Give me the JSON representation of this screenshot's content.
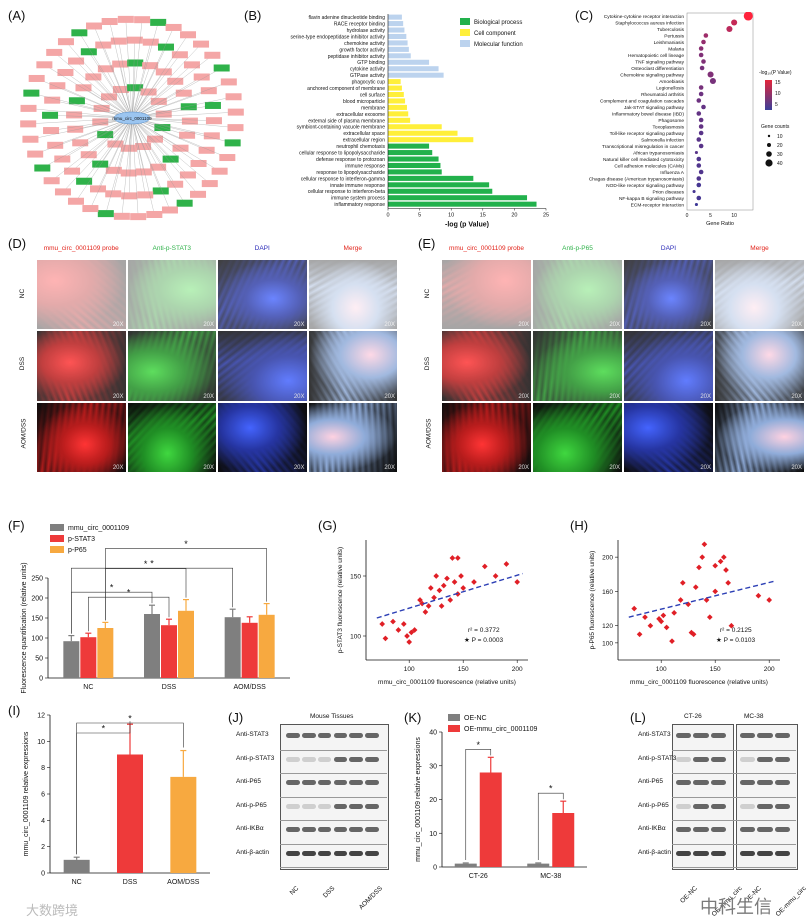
{
  "panel_labels": [
    "(A)",
    "(B)",
    "(C)",
    "(D)",
    "(E)",
    "(F)",
    "(G)",
    "(H)",
    "(I)",
    "(J)",
    "(K)",
    "(L)"
  ],
  "network": {
    "center_label": "mmu_circ_0001109",
    "accent_pink": "#f4a6a6",
    "accent_green": "#2fb24a"
  },
  "go_chart": {
    "xlabel": "-log (p Value)",
    "legend": [
      "Biological process",
      "Cell component",
      "Molecular function"
    ],
    "colors": {
      "bp": "#22b14c",
      "cc": "#ffef3a",
      "mf": "#bcd3ee"
    },
    "terms": [
      {
        "name": "flavin adenine dinucleotide binding",
        "value": 2.2,
        "cat": "mf"
      },
      {
        "name": "RACE receptor binding",
        "value": 2.4,
        "cat": "mf"
      },
      {
        "name": "hydrolase activity",
        "value": 2.6,
        "cat": "mf"
      },
      {
        "name": "serine-type endopeptidase inhibitor activity",
        "value": 2.9,
        "cat": "mf"
      },
      {
        "name": "chemokine activity",
        "value": 3.1,
        "cat": "mf"
      },
      {
        "name": "growth factor activity",
        "value": 3.3,
        "cat": "mf"
      },
      {
        "name": "peptidase inhibitor activity",
        "value": 3.6,
        "cat": "mf"
      },
      {
        "name": "GTP binding",
        "value": 6.5,
        "cat": "mf"
      },
      {
        "name": "cytokine activity",
        "value": 8.0,
        "cat": "mf"
      },
      {
        "name": "GTPase activity",
        "value": 8.8,
        "cat": "mf"
      },
      {
        "name": "phagocytic cup",
        "value": 2.0,
        "cat": "cc"
      },
      {
        "name": "anchored component of membrane",
        "value": 2.2,
        "cat": "cc"
      },
      {
        "name": "cell surface",
        "value": 2.5,
        "cat": "cc"
      },
      {
        "name": "blood microparticle",
        "value": 2.7,
        "cat": "cc"
      },
      {
        "name": "membrane",
        "value": 3.0,
        "cat": "cc"
      },
      {
        "name": "extracellular exosome",
        "value": 3.2,
        "cat": "cc"
      },
      {
        "name": "external side of plasma membrane",
        "value": 3.5,
        "cat": "cc"
      },
      {
        "name": "symbiont-containing vacuole membrane",
        "value": 8.5,
        "cat": "cc"
      },
      {
        "name": "extracellular space",
        "value": 11.0,
        "cat": "cc"
      },
      {
        "name": "extracellular region",
        "value": 13.5,
        "cat": "cc"
      },
      {
        "name": "neutrophil chemotaxis",
        "value": 6.5,
        "cat": "bp"
      },
      {
        "name": "cellular response to lipopolysaccharide",
        "value": 7.0,
        "cat": "bp"
      },
      {
        "name": "defense response to protozoan",
        "value": 8.0,
        "cat": "bp"
      },
      {
        "name": "immune response",
        "value": 8.3,
        "cat": "bp"
      },
      {
        "name": "response to lipopolysaccharide",
        "value": 8.5,
        "cat": "bp"
      },
      {
        "name": "cellular response to interferon-gamma",
        "value": 13.5,
        "cat": "bp"
      },
      {
        "name": "innate immune response",
        "value": 16.0,
        "cat": "bp"
      },
      {
        "name": "cellular response to interferon-beta",
        "value": 16.5,
        "cat": "bp"
      },
      {
        "name": "immune system process",
        "value": 22.0,
        "cat": "bp"
      },
      {
        "name": "inflammatory response",
        "value": 23.5,
        "cat": "bp"
      }
    ],
    "ticks": [
      "0",
      "5",
      "10",
      "15",
      "20",
      "25"
    ]
  },
  "kegg": {
    "xlabel": "Gene Ratio",
    "legend_title": "-log₁₀(P Value)",
    "legend_scale": [
      "15",
      "10",
      "5"
    ],
    "counts_title": "Gene counts",
    "counts": [
      "10",
      "20",
      "30",
      "40"
    ],
    "ticks": [
      "0",
      "5",
      "10"
    ],
    "pathways": [
      {
        "name": "Cytokine-cytokine receptor interaction",
        "ratio": 13,
        "size": 5,
        "t": 1.0
      },
      {
        "name": "Staphylococcus aureus infection",
        "ratio": 10,
        "size": 3,
        "t": 0.7
      },
      {
        "name": "Tuberculosis",
        "ratio": 9,
        "size": 3,
        "t": 0.65
      },
      {
        "name": "Pertussis",
        "ratio": 4,
        "size": 2,
        "t": 0.5
      },
      {
        "name": "Leishmaniasis",
        "ratio": 3.5,
        "size": 2,
        "t": 0.45
      },
      {
        "name": "Malaria",
        "ratio": 3,
        "size": 2,
        "t": 0.4
      },
      {
        "name": "Hematopoietic cell lineage",
        "ratio": 3,
        "size": 2,
        "t": 0.35
      },
      {
        "name": "TNF signaling pathway",
        "ratio": 3.5,
        "size": 2,
        "t": 0.35
      },
      {
        "name": "Osteoclast differentiation",
        "ratio": 3.2,
        "size": 2,
        "t": 0.3
      },
      {
        "name": "Chemokine signaling pathway",
        "ratio": 5,
        "size": 3,
        "t": 0.35
      },
      {
        "name": "Amoebiasis",
        "ratio": 5.5,
        "size": 3,
        "t": 0.3
      },
      {
        "name": "Legionellosis",
        "ratio": 3,
        "size": 2,
        "t": 0.3
      },
      {
        "name": "Rheumatoid arthritis",
        "ratio": 3,
        "size": 2,
        "t": 0.25
      },
      {
        "name": "Complement and coagulation cascades",
        "ratio": 2.5,
        "size": 2,
        "t": 0.25
      },
      {
        "name": "Jak-STAT signaling pathway",
        "ratio": 3.5,
        "size": 2,
        "t": 0.2
      },
      {
        "name": "Inflammatory bowel disease (IBD)",
        "ratio": 2.5,
        "size": 2,
        "t": 0.2
      },
      {
        "name": "Phagosome",
        "ratio": 3,
        "size": 2,
        "t": 0.2
      },
      {
        "name": "Toxoplasmosis",
        "ratio": 3,
        "size": 2,
        "t": 0.2
      },
      {
        "name": "Toll-like receptor signaling pathway",
        "ratio": 3,
        "size": 2,
        "t": 0.15
      },
      {
        "name": "Salmonella infection",
        "ratio": 2.5,
        "size": 2,
        "t": 0.15
      },
      {
        "name": "Transcriptional misregulation in cancer",
        "ratio": 3,
        "size": 2,
        "t": 0.15
      },
      {
        "name": "African trypanosomiasis",
        "ratio": 2,
        "size": 1,
        "t": 0.15
      },
      {
        "name": "Natural killer cell mediated cytotoxicity",
        "ratio": 2.5,
        "size": 2,
        "t": 0.1
      },
      {
        "name": "Cell adhesion molecules (CAMs)",
        "ratio": 2.5,
        "size": 2,
        "t": 0.1
      },
      {
        "name": "Influenza A",
        "ratio": 3,
        "size": 2,
        "t": 0.1
      },
      {
        "name": "Chagas disease (American trypanosomiasis)",
        "ratio": 2.5,
        "size": 2,
        "t": 0.1
      },
      {
        "name": "NOD-like receptor signaling pathway",
        "ratio": 2.5,
        "size": 2,
        "t": 0.05
      },
      {
        "name": "Prion diseases",
        "ratio": 1.5,
        "size": 1,
        "t": 0.05
      },
      {
        "name": "NF-kappa B signaling pathway",
        "ratio": 2.5,
        "size": 2,
        "t": 0.05
      },
      {
        "name": "ECM-receptor interaction",
        "ratio": 2,
        "size": 1,
        "t": 0.0
      }
    ]
  },
  "micro_d": {
    "headers": [
      {
        "text": "mmu_circ_0001109 probe",
        "color": "#e2231a"
      },
      {
        "text": "Anti-p-STAT3",
        "color": "#2fb24a"
      },
      {
        "text": "DAPI",
        "color": "#2a2ab8"
      },
      {
        "text": "Merge",
        "color": "#e2231a"
      }
    ],
    "rows": [
      "NC",
      "DSS",
      "AOM/DSS"
    ],
    "mag": "20X"
  },
  "micro_e": {
    "headers": [
      {
        "text": "mmu_circ_0001109 probe",
        "color": "#e2231a"
      },
      {
        "text": "Anti-p-P65",
        "color": "#2fb24a"
      },
      {
        "text": "DAPI",
        "color": "#2a2ab8"
      },
      {
        "text": "Merge",
        "color": "#e2231a"
      }
    ],
    "rows": [
      "NC",
      "DSS",
      "AOM/DSS"
    ],
    "mag": "20X"
  },
  "chart_f": {
    "type": "bar",
    "ylabel": "Fluorescence quantification (relative units)",
    "categories": [
      "NC",
      "DSS",
      "AOM/DSS"
    ],
    "series": [
      {
        "name": "mmu_circ_0001109",
        "color": "#7f7f7f",
        "values": [
          92,
          160,
          152
        ],
        "err": [
          14,
          22,
          20
        ]
      },
      {
        "name": "p-STAT3",
        "color": "#ee3a3a",
        "values": [
          102,
          132,
          138
        ],
        "err": [
          10,
          15,
          15
        ]
      },
      {
        "name": "p-P65",
        "color": "#f7a940",
        "values": [
          125,
          168,
          158
        ],
        "err": [
          14,
          28,
          28
        ]
      }
    ],
    "ylim": [
      0,
      250
    ],
    "ticks": [
      "0",
      "50",
      "100",
      "150",
      "200",
      "250"
    ],
    "star": "*"
  },
  "chart_g": {
    "type": "scatter",
    "xlabel": "mmu_circ_0001109 fluorescence (relative units)",
    "ylabel": "p-STAT3 fluorescence (relative units)",
    "r2": "r² = 0.3772",
    "p": "★ P = 0.0003",
    "xticks": [
      "100",
      "150",
      "200"
    ],
    "yticks": [
      "100",
      "150"
    ],
    "xlim": [
      60,
      210
    ],
    "ylim": [
      80,
      180
    ],
    "points": [
      [
        75,
        110
      ],
      [
        78,
        98
      ],
      [
        85,
        112
      ],
      [
        90,
        105
      ],
      [
        95,
        110
      ],
      [
        98,
        100
      ],
      [
        100,
        95
      ],
      [
        102,
        103
      ],
      [
        105,
        105
      ],
      [
        110,
        130
      ],
      [
        112,
        127
      ],
      [
        115,
        120
      ],
      [
        118,
        125
      ],
      [
        120,
        140
      ],
      [
        123,
        132
      ],
      [
        125,
        150
      ],
      [
        128,
        138
      ],
      [
        130,
        125
      ],
      [
        132,
        142
      ],
      [
        135,
        148
      ],
      [
        138,
        130
      ],
      [
        140,
        165
      ],
      [
        142,
        145
      ],
      [
        145,
        135
      ],
      [
        145,
        165
      ],
      [
        148,
        150
      ],
      [
        150,
        140
      ],
      [
        160,
        145
      ],
      [
        170,
        158
      ],
      [
        180,
        150
      ],
      [
        190,
        160
      ],
      [
        200,
        145
      ]
    ],
    "fit": [
      [
        70,
        115
      ],
      [
        205,
        152
      ]
    ]
  },
  "chart_h": {
    "type": "scatter",
    "xlabel": "mmu_circ_0001109 fluorescence (relative units)",
    "ylabel": "p-P65 fluorescence (relative units)",
    "r2": "r² = 0.2125",
    "p": "★ P = 0.0103",
    "xticks": [
      "100",
      "150",
      "200"
    ],
    "yticks": [
      "100",
      "120",
      "160",
      "200"
    ],
    "xlim": [
      60,
      210
    ],
    "ylim": [
      80,
      220
    ],
    "points": [
      [
        75,
        140
      ],
      [
        80,
        110
      ],
      [
        85,
        130
      ],
      [
        90,
        120
      ],
      [
        98,
        128
      ],
      [
        100,
        125
      ],
      [
        102,
        132
      ],
      [
        105,
        118
      ],
      [
        110,
        102
      ],
      [
        112,
        135
      ],
      [
        118,
        150
      ],
      [
        120,
        170
      ],
      [
        125,
        145
      ],
      [
        128,
        112
      ],
      [
        130,
        110
      ],
      [
        132,
        165
      ],
      [
        135,
        188
      ],
      [
        138,
        200
      ],
      [
        140,
        215
      ],
      [
        142,
        150
      ],
      [
        145,
        130
      ],
      [
        150,
        160
      ],
      [
        150,
        190
      ],
      [
        155,
        195
      ],
      [
        158,
        200
      ],
      [
        160,
        185
      ],
      [
        162,
        170
      ],
      [
        165,
        120
      ],
      [
        190,
        155
      ],
      [
        200,
        150
      ]
    ],
    "fit": [
      [
        70,
        130
      ],
      [
        205,
        172
      ]
    ]
  },
  "chart_i": {
    "type": "bar",
    "ylabel": "mmu_circ_0001109 relative expressions",
    "categories": [
      "NC",
      "DSS",
      "AOM/DSS"
    ],
    "values": [
      1.0,
      9.0,
      7.3
    ],
    "err": [
      0.2,
      2.3,
      2.0
    ],
    "colors": [
      "#7f7f7f",
      "#ee3a3a",
      "#f7a940"
    ],
    "ylim": [
      0,
      12
    ],
    "ticks": [
      "0",
      "2",
      "4",
      "6",
      "8",
      "10",
      "12"
    ],
    "star": "*"
  },
  "blot_j": {
    "title": "Mouse Tissues",
    "rows": [
      "Anti-STAT3",
      "Anti-p-STAT3",
      "Anti-P65",
      "Anti-p-P65",
      "Anti-IKBα",
      "Anti-β-actin"
    ],
    "lanes": [
      "NC",
      "DSS",
      "AOM/DSS"
    ]
  },
  "chart_k": {
    "type": "bar",
    "ylabel": "mmu_circ_0001109 relative expressions",
    "categories": [
      "CT-26",
      "MC-38"
    ],
    "series": [
      {
        "name": "OE-NC",
        "color": "#7f7f7f",
        "values": [
          1.0,
          1.0
        ],
        "err": [
          0.2,
          0.2
        ]
      },
      {
        "name": "OE-mmu_circ_0001109",
        "color": "#ee3a3a",
        "values": [
          28,
          16
        ],
        "err": [
          4.5,
          3.5
        ]
      }
    ],
    "ylim": [
      0,
      40
    ],
    "ticks": [
      "0",
      "10",
      "20",
      "30",
      "40"
    ],
    "star": "*"
  },
  "blot_l": {
    "groups": [
      "CT-26",
      "MC-38"
    ],
    "rows": [
      "Anti-STAT3",
      "Anti-p-STAT3",
      "Anti-P65",
      "Anti-p-P65",
      "Anti-IKBα",
      "Anti-β-actin"
    ],
    "lanes": [
      "OE-NC",
      "OE-mmu_circ",
      "OE-NC",
      "OE-mmu_circ"
    ]
  },
  "watermarks": {
    "left": "大数跨境",
    "right": "中科生信"
  }
}
